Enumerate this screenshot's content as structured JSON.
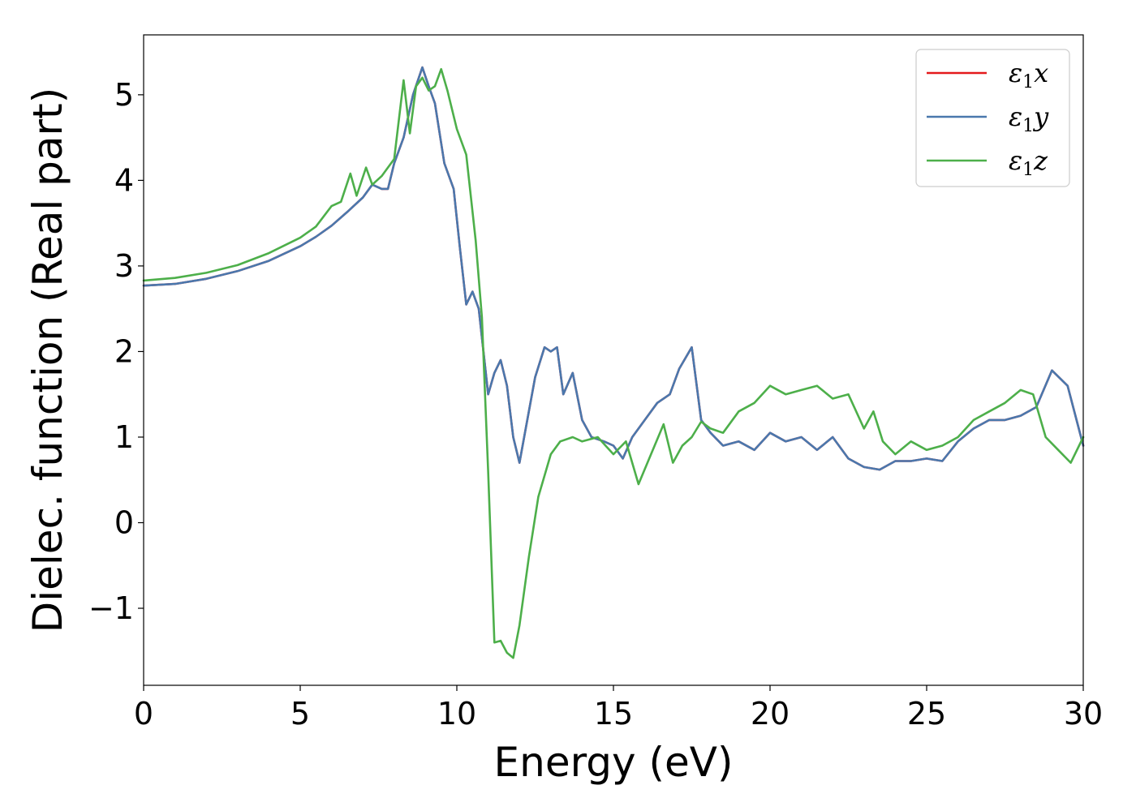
{
  "chart_data": {
    "type": "line",
    "xlabel": "Energy (eV)",
    "ylabel": "Dielec. function (Real part)",
    "xlim": [
      0,
      30
    ],
    "ylim": [
      -1.9,
      5.7
    ],
    "xticks": [
      0,
      5,
      10,
      15,
      20,
      25,
      30
    ],
    "xtick_labels": [
      "0",
      "5",
      "10",
      "15",
      "20",
      "25",
      "30"
    ],
    "yticks": [
      -1,
      0,
      1,
      2,
      3,
      4,
      5
    ],
    "ytick_labels": [
      "−1",
      "0",
      "1",
      "2",
      "3",
      "4",
      "5"
    ],
    "grid": false,
    "legend_position": "top-right",
    "series": [
      {
        "name": "ε",
        "subscript": "1",
        "suffix": "x",
        "color": "#e41a1c",
        "x": [
          0,
          1,
          2,
          3,
          4,
          5,
          5.5,
          6,
          6.5,
          7,
          7.3,
          7.6,
          7.8,
          8,
          8.3,
          8.6,
          8.9,
          9.1,
          9.3,
          9.6,
          9.9,
          10.1,
          10.3,
          10.5,
          10.7,
          11,
          11.2,
          11.4,
          11.6,
          11.8,
          12,
          12.2,
          12.5,
          12.8,
          13.0,
          13.2,
          13.4,
          13.7,
          14.0,
          14.3,
          14.7,
          15.0,
          15.3,
          15.6,
          16.0,
          16.4,
          16.8,
          17.1,
          17.5,
          17.8,
          18.1,
          18.5,
          19.0,
          19.5,
          20.0,
          20.5,
          21.0,
          21.5,
          22.0,
          22.5,
          23.0,
          23.5,
          24.0,
          24.5,
          25.0,
          25.5,
          26.0,
          26.5,
          27.0,
          27.5,
          28.0,
          28.5,
          29.0,
          29.5,
          30.0
        ],
        "y": [
          2.77,
          2.79,
          2.85,
          2.94,
          3.06,
          3.23,
          3.34,
          3.47,
          3.63,
          3.8,
          3.95,
          3.9,
          3.9,
          4.2,
          4.5,
          5.0,
          5.32,
          5.1,
          4.9,
          4.2,
          3.9,
          3.2,
          2.55,
          2.7,
          2.5,
          1.5,
          1.75,
          1.9,
          1.6,
          1.0,
          0.7,
          1.1,
          1.7,
          2.05,
          2.0,
          2.05,
          1.5,
          1.75,
          1.2,
          1.0,
          0.95,
          0.9,
          0.75,
          1.0,
          1.2,
          1.4,
          1.5,
          1.8,
          2.05,
          1.2,
          1.05,
          0.9,
          0.95,
          0.85,
          1.05,
          0.95,
          1.0,
          0.85,
          1.0,
          0.75,
          0.65,
          0.62,
          0.72,
          0.72,
          0.75,
          0.72,
          0.95,
          1.1,
          1.2,
          1.2,
          1.25,
          1.35,
          1.78,
          1.6,
          0.9
        ]
      },
      {
        "name": "ε",
        "subscript": "1",
        "suffix": "y",
        "color": "#4a78ad",
        "x": [
          0,
          1,
          2,
          3,
          4,
          5,
          5.5,
          6,
          6.5,
          7,
          7.3,
          7.6,
          7.8,
          8,
          8.3,
          8.6,
          8.9,
          9.1,
          9.3,
          9.6,
          9.9,
          10.1,
          10.3,
          10.5,
          10.7,
          11,
          11.2,
          11.4,
          11.6,
          11.8,
          12,
          12.2,
          12.5,
          12.8,
          13.0,
          13.2,
          13.4,
          13.7,
          14.0,
          14.3,
          14.7,
          15.0,
          15.3,
          15.6,
          16.0,
          16.4,
          16.8,
          17.1,
          17.5,
          17.8,
          18.1,
          18.5,
          19.0,
          19.5,
          20.0,
          20.5,
          21.0,
          21.5,
          22.0,
          22.5,
          23.0,
          23.5,
          24.0,
          24.5,
          25.0,
          25.5,
          26.0,
          26.5,
          27.0,
          27.5,
          28.0,
          28.5,
          29.0,
          29.5,
          30.0
        ],
        "y": [
          2.77,
          2.79,
          2.85,
          2.94,
          3.06,
          3.23,
          3.34,
          3.47,
          3.63,
          3.8,
          3.95,
          3.9,
          3.9,
          4.2,
          4.5,
          5.0,
          5.32,
          5.1,
          4.9,
          4.2,
          3.9,
          3.2,
          2.55,
          2.7,
          2.5,
          1.5,
          1.75,
          1.9,
          1.6,
          1.0,
          0.7,
          1.1,
          1.7,
          2.05,
          2.0,
          2.05,
          1.5,
          1.75,
          1.2,
          1.0,
          0.95,
          0.9,
          0.75,
          1.0,
          1.2,
          1.4,
          1.5,
          1.8,
          2.05,
          1.2,
          1.05,
          0.9,
          0.95,
          0.85,
          1.05,
          0.95,
          1.0,
          0.85,
          1.0,
          0.75,
          0.65,
          0.62,
          0.72,
          0.72,
          0.75,
          0.72,
          0.95,
          1.1,
          1.2,
          1.2,
          1.25,
          1.35,
          1.78,
          1.6,
          0.9
        ]
      },
      {
        "name": "ε",
        "subscript": "1",
        "suffix": "z",
        "color": "#4daf4a",
        "x": [
          0,
          1,
          2,
          3,
          4,
          5,
          5.5,
          6,
          6.3,
          6.6,
          6.8,
          7.1,
          7.3,
          7.6,
          8,
          8.3,
          8.5,
          8.7,
          8.9,
          9.1,
          9.3,
          9.5,
          9.7,
          10.0,
          10.3,
          10.6,
          10.8,
          11.0,
          11.2,
          11.4,
          11.6,
          11.8,
          12.0,
          12.3,
          12.6,
          13.0,
          13.3,
          13.7,
          14.0,
          14.5,
          15.0,
          15.4,
          15.8,
          16.2,
          16.6,
          16.9,
          17.2,
          17.5,
          17.8,
          18.1,
          18.5,
          19.0,
          19.5,
          20.0,
          20.5,
          21.0,
          21.5,
          22.0,
          22.5,
          23.0,
          23.3,
          23.6,
          24.0,
          24.5,
          25.0,
          25.5,
          26.0,
          26.5,
          27.0,
          27.5,
          28.0,
          28.4,
          28.8,
          29.2,
          29.6,
          30.0
        ],
        "y": [
          2.83,
          2.86,
          2.92,
          3.01,
          3.15,
          3.33,
          3.46,
          3.7,
          3.75,
          4.08,
          3.82,
          4.15,
          3.95,
          4.05,
          4.25,
          5.17,
          4.55,
          5.1,
          5.2,
          5.05,
          5.1,
          5.3,
          5.05,
          4.6,
          4.3,
          3.3,
          2.4,
          0.6,
          -1.4,
          -1.38,
          -1.52,
          -1.58,
          -1.2,
          -0.4,
          0.3,
          0.8,
          0.95,
          1.0,
          0.95,
          1.0,
          0.8,
          0.95,
          0.45,
          0.8,
          1.15,
          0.7,
          0.9,
          1.0,
          1.18,
          1.1,
          1.05,
          1.3,
          1.4,
          1.6,
          1.5,
          1.55,
          1.6,
          1.45,
          1.5,
          1.1,
          1.3,
          0.95,
          0.8,
          0.95,
          0.85,
          0.9,
          1.0,
          1.2,
          1.3,
          1.4,
          1.55,
          1.5,
          1.0,
          0.85,
          0.7,
          1.0
        ]
      }
    ]
  }
}
